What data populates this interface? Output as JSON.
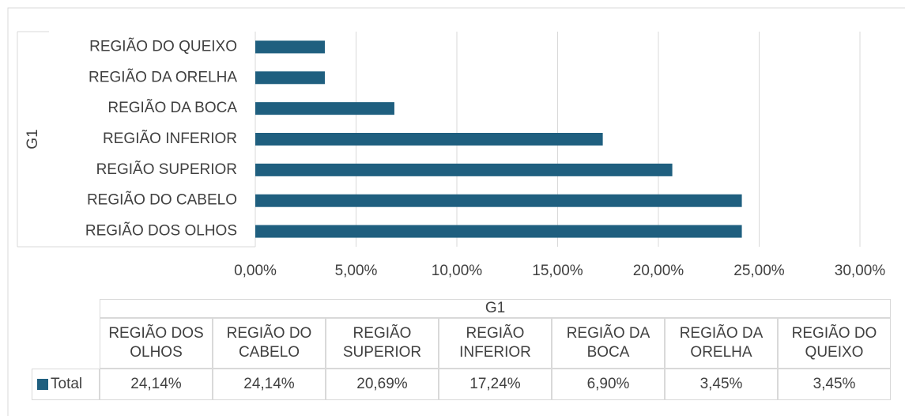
{
  "chart_data": {
    "type": "bar",
    "orientation": "horizontal",
    "ylabel": "G1",
    "categories": [
      "REGIÃO DOS OLHOS",
      "REGIÃO DO CABELO",
      "REGIÃO SUPERIOR",
      "REGIÃO INFERIOR",
      "REGIÃO DA BOCA",
      "REGIÃO DA ORELHA",
      "REGIÃO DO QUEIXO"
    ],
    "series": [
      {
        "name": "Total",
        "color": "#1f5f7f",
        "values": [
          24.14,
          24.14,
          20.69,
          17.24,
          6.9,
          3.45,
          3.45
        ],
        "value_labels": [
          "24,14%",
          "24,14%",
          "20,69%",
          "17,24%",
          "6,90%",
          "3,45%",
          "3,45%"
        ]
      }
    ],
    "xlim": [
      0,
      30
    ],
    "xticks": [
      {
        "value": 0,
        "label": "0,00%"
      },
      {
        "value": 5,
        "label": "5,00%"
      },
      {
        "value": 10,
        "label": "10,00%"
      },
      {
        "value": 15,
        "label": "15,00%"
      },
      {
        "value": 20,
        "label": "20,00%"
      },
      {
        "value": 25,
        "label": "25,00%"
      },
      {
        "value": 30,
        "label": "30,00%"
      }
    ],
    "grid": true,
    "data_table": true
  }
}
